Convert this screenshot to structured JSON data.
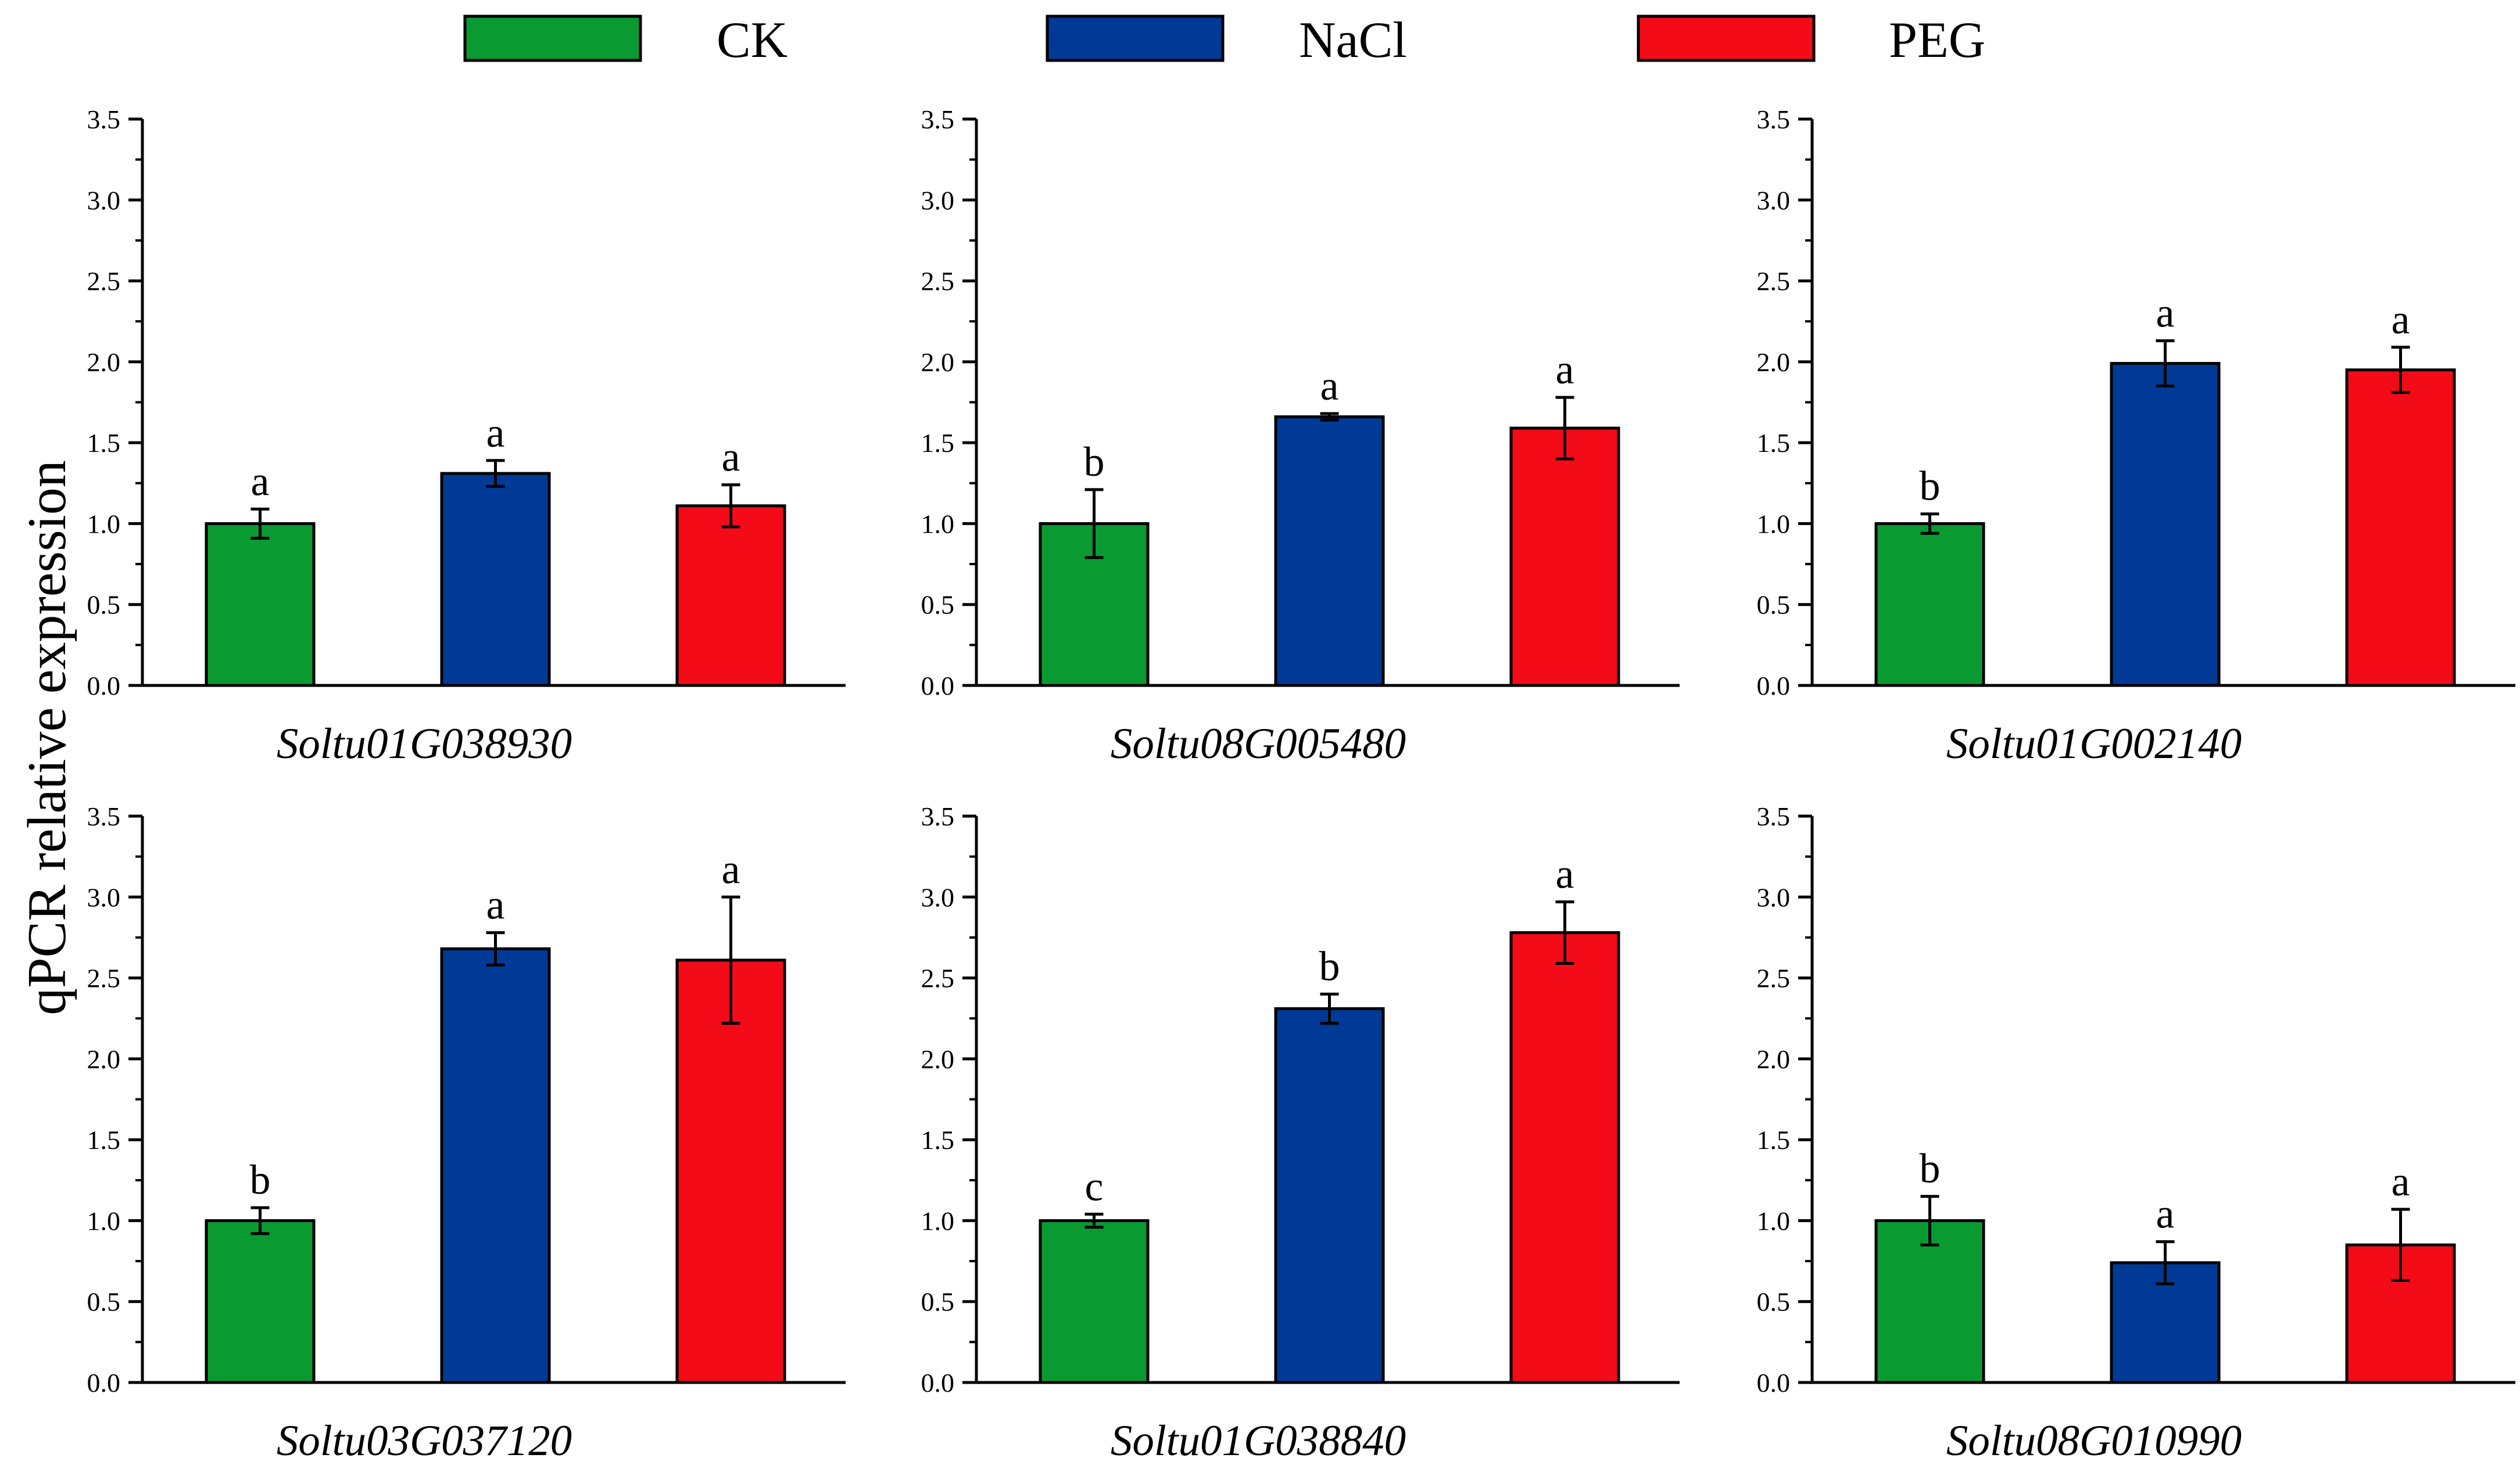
{
  "figure": {
    "ylabel": "qPCR relative expression",
    "legend": [
      {
        "label": "CK",
        "color": "#0a9a32"
      },
      {
        "label": "NaCl",
        "color": "#003a97"
      },
      {
        "label": "PEG",
        "color": "#f40b18"
      }
    ]
  },
  "chart_data": [
    {
      "type": "bar",
      "xlabel": "Soltu01G038930",
      "categories": [
        "CK",
        "NaCl",
        "PEG"
      ],
      "values": [
        1.0,
        1.31,
        1.11
      ],
      "errors": [
        0.09,
        0.08,
        0.13
      ],
      "significance": [
        "a",
        "a",
        "a"
      ],
      "ylim": [
        0,
        3.5
      ],
      "yticks": [
        "0.0",
        "0.5",
        "1.0",
        "1.5",
        "2.0",
        "2.5",
        "3.0",
        "3.5"
      ]
    },
    {
      "type": "bar",
      "xlabel": "Soltu08G005480",
      "categories": [
        "CK",
        "NaCl",
        "PEG"
      ],
      "values": [
        1.0,
        1.66,
        1.59
      ],
      "errors": [
        0.21,
        0.02,
        0.19
      ],
      "significance": [
        "b",
        "a",
        "a"
      ],
      "ylim": [
        0,
        3.5
      ],
      "yticks": [
        "0.0",
        "0.5",
        "1.0",
        "1.5",
        "2.0",
        "2.5",
        "3.0",
        "3.5"
      ]
    },
    {
      "type": "bar",
      "xlabel": "Soltu01G002140",
      "categories": [
        "CK",
        "NaCl",
        "PEG"
      ],
      "values": [
        1.0,
        1.99,
        1.95
      ],
      "errors": [
        0.06,
        0.14,
        0.14
      ],
      "significance": [
        "b",
        "a",
        "a"
      ],
      "ylim": [
        0,
        3.5
      ],
      "yticks": [
        "0.0",
        "0.5",
        "1.0",
        "1.5",
        "2.0",
        "2.5",
        "3.0",
        "3.5"
      ]
    },
    {
      "type": "bar",
      "xlabel": "Soltu03G037120",
      "categories": [
        "CK",
        "NaCl",
        "PEG"
      ],
      "values": [
        1.0,
        2.68,
        2.61
      ],
      "errors": [
        0.08,
        0.1,
        0.39
      ],
      "significance": [
        "b",
        "a",
        "a"
      ],
      "ylim": [
        0,
        3.5
      ],
      "yticks": [
        "0.0",
        "0.5",
        "1.0",
        "1.5",
        "2.0",
        "2.5",
        "3.0",
        "3.5"
      ]
    },
    {
      "type": "bar",
      "xlabel": "Soltu01G038840",
      "categories": [
        "CK",
        "NaCl",
        "PEG"
      ],
      "values": [
        1.0,
        2.31,
        2.78
      ],
      "errors": [
        0.04,
        0.09,
        0.19
      ],
      "significance": [
        "c",
        "b",
        "a"
      ],
      "ylim": [
        0,
        3.5
      ],
      "yticks": [
        "0.0",
        "0.5",
        "1.0",
        "1.5",
        "2.0",
        "2.5",
        "3.0",
        "3.5"
      ]
    },
    {
      "type": "bar",
      "xlabel": "Soltu08G010990",
      "categories": [
        "CK",
        "NaCl",
        "PEG"
      ],
      "values": [
        1.0,
        0.74,
        0.85
      ],
      "errors": [
        0.15,
        0.13,
        0.22
      ],
      "significance": [
        "b",
        "a",
        "a"
      ],
      "ylim": [
        0,
        3.5
      ],
      "yticks": [
        "0.0",
        "0.5",
        "1.0",
        "1.5",
        "2.0",
        "2.5",
        "3.0",
        "3.5"
      ]
    }
  ]
}
